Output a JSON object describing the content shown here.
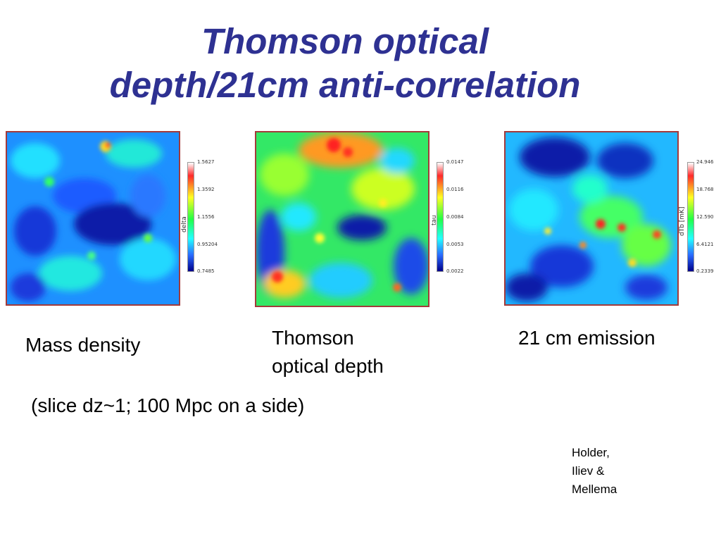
{
  "title": {
    "line1": "Thomson optical",
    "line2": "depth/21cm anti-correlation"
  },
  "panels": [
    {
      "axis_label": "delta",
      "ticks": [
        "1.5627",
        "1.3592",
        "1.1556",
        "0.95204",
        "0.7485"
      ],
      "caption": "Mass density"
    },
    {
      "axis_label": "tau",
      "ticks": [
        "0.0147",
        "0.0116",
        "0.0084",
        "0.0053",
        "0.0022"
      ],
      "caption_line1": "Thomson",
      "caption_line2": "optical depth"
    },
    {
      "axis_label": "dTb [mK]",
      "ticks": [
        "24.946",
        "18.768",
        "12.590",
        "6.4121",
        "0.2339"
      ],
      "caption": "21 cm emission"
    }
  ],
  "slice_note": "(slice dz~1; 100 Mpc on a side)",
  "credit": {
    "line1": "Holder,",
    "line2": "Iliev &",
    "line3": "Mellema"
  },
  "colors": {
    "title": "#2e3192",
    "border": "#a33a3a"
  }
}
